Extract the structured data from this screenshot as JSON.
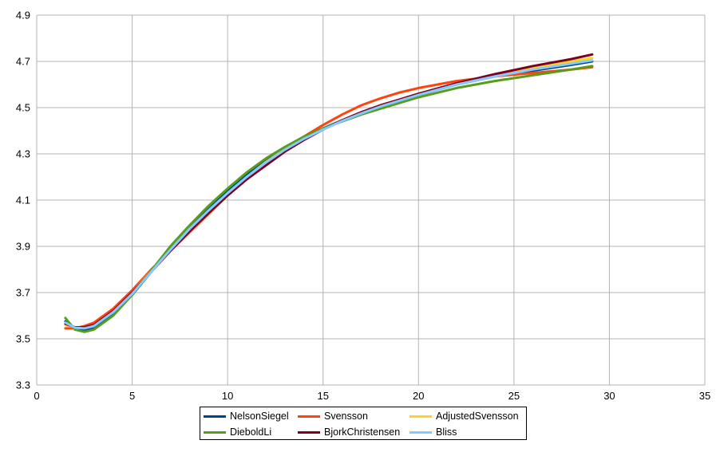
{
  "chart_data": {
    "type": "line",
    "title": "",
    "xlabel": "",
    "ylabel": "",
    "xlim": [
      0,
      35
    ],
    "ylim": [
      3.3,
      4.9
    ],
    "x_ticks": [
      "0",
      "5",
      "10",
      "15",
      "20",
      "25",
      "30",
      "35"
    ],
    "y_ticks": [
      "4.9",
      "4.7",
      "4.5",
      "4.3",
      "4.1",
      "3.9",
      "3.7",
      "3.5",
      "3.3"
    ],
    "grid": true,
    "legend_position": "bottom",
    "series": [
      {
        "name": "NelsonSiegel",
        "color": "#004586",
        "points": [
          [
            1.5,
            3.575
          ],
          [
            2.0,
            3.545
          ],
          [
            2.5,
            3.54
          ],
          [
            3.0,
            3.55
          ],
          [
            4.0,
            3.61
          ],
          [
            5.0,
            3.69
          ],
          [
            6.0,
            3.79
          ],
          [
            7.0,
            3.89
          ],
          [
            8.0,
            3.98
          ],
          [
            9.0,
            4.06
          ],
          [
            10.0,
            4.14
          ],
          [
            11.0,
            4.21
          ],
          [
            12.0,
            4.27
          ],
          [
            13.0,
            4.32
          ],
          [
            14.0,
            4.37
          ],
          [
            15.0,
            4.41
          ],
          [
            16.0,
            4.445
          ],
          [
            17.0,
            4.475
          ],
          [
            18.0,
            4.505
          ],
          [
            19.0,
            4.53
          ],
          [
            20.0,
            4.555
          ],
          [
            22.0,
            4.6
          ],
          [
            24.0,
            4.635
          ],
          [
            26.0,
            4.66
          ],
          [
            28.0,
            4.685
          ],
          [
            29.1,
            4.7
          ]
        ]
      },
      {
        "name": "Svensson",
        "color": "#ff420e",
        "points": [
          [
            1.5,
            3.545
          ],
          [
            2.0,
            3.545
          ],
          [
            2.5,
            3.555
          ],
          [
            3.0,
            3.57
          ],
          [
            4.0,
            3.63
          ],
          [
            5.0,
            3.71
          ],
          [
            6.0,
            3.8
          ],
          [
            7.0,
            3.88
          ],
          [
            8.0,
            3.96
          ],
          [
            9.0,
            4.04
          ],
          [
            10.0,
            4.12
          ],
          [
            11.0,
            4.19
          ],
          [
            12.0,
            4.255
          ],
          [
            13.0,
            4.32
          ],
          [
            14.0,
            4.375
          ],
          [
            15.0,
            4.425
          ],
          [
            16.0,
            4.47
          ],
          [
            17.0,
            4.51
          ],
          [
            18.0,
            4.54
          ],
          [
            19.0,
            4.565
          ],
          [
            20.0,
            4.585
          ],
          [
            22.0,
            4.615
          ],
          [
            24.0,
            4.635
          ],
          [
            26.0,
            4.65
          ],
          [
            28.0,
            4.665
          ],
          [
            29.1,
            4.675
          ]
        ]
      },
      {
        "name": "AdjustedSvensson",
        "color": "#ffd320",
        "points": [
          [
            1.5,
            3.56
          ],
          [
            2.0,
            3.55
          ],
          [
            2.5,
            3.55
          ],
          [
            3.0,
            3.56
          ],
          [
            4.0,
            3.62
          ],
          [
            5.0,
            3.7
          ],
          [
            6.0,
            3.795
          ],
          [
            7.0,
            3.885
          ],
          [
            8.0,
            3.975
          ],
          [
            9.0,
            4.055
          ],
          [
            10.0,
            4.13
          ],
          [
            11.0,
            4.2
          ],
          [
            12.0,
            4.265
          ],
          [
            13.0,
            4.32
          ],
          [
            14.0,
            4.365
          ],
          [
            15.0,
            4.405
          ],
          [
            16.0,
            4.445
          ],
          [
            17.0,
            4.48
          ],
          [
            18.0,
            4.51
          ],
          [
            19.0,
            4.535
          ],
          [
            20.0,
            4.56
          ],
          [
            22.0,
            4.605
          ],
          [
            24.0,
            4.64
          ],
          [
            26.0,
            4.67
          ],
          [
            28.0,
            4.7
          ],
          [
            29.1,
            4.715
          ]
        ]
      },
      {
        "name": "DieboldLi",
        "color": "#579d1c",
        "points": [
          [
            1.5,
            3.59
          ],
          [
            2.0,
            3.54
          ],
          [
            2.5,
            3.53
          ],
          [
            3.0,
            3.54
          ],
          [
            4.0,
            3.6
          ],
          [
            5.0,
            3.69
          ],
          [
            6.0,
            3.795
          ],
          [
            7.0,
            3.9
          ],
          [
            8.0,
            3.99
          ],
          [
            9.0,
            4.075
          ],
          [
            10.0,
            4.15
          ],
          [
            11.0,
            4.22
          ],
          [
            12.0,
            4.28
          ],
          [
            13.0,
            4.33
          ],
          [
            14.0,
            4.375
          ],
          [
            15.0,
            4.41
          ],
          [
            16.0,
            4.44
          ],
          [
            17.0,
            4.47
          ],
          [
            18.0,
            4.495
          ],
          [
            19.0,
            4.52
          ],
          [
            20.0,
            4.545
          ],
          [
            22.0,
            4.585
          ],
          [
            24.0,
            4.615
          ],
          [
            26.0,
            4.64
          ],
          [
            28.0,
            4.665
          ],
          [
            29.1,
            4.68
          ]
        ]
      },
      {
        "name": "BjorkChristensen",
        "color": "#7e0021",
        "points": [
          [
            1.5,
            3.565
          ],
          [
            2.0,
            3.55
          ],
          [
            2.5,
            3.55
          ],
          [
            3.0,
            3.56
          ],
          [
            4.0,
            3.62
          ],
          [
            5.0,
            3.7
          ],
          [
            6.0,
            3.79
          ],
          [
            7.0,
            3.88
          ],
          [
            8.0,
            3.965
          ],
          [
            9.0,
            4.045
          ],
          [
            10.0,
            4.12
          ],
          [
            11.0,
            4.19
          ],
          [
            12.0,
            4.25
          ],
          [
            13.0,
            4.31
          ],
          [
            14.0,
            4.36
          ],
          [
            15.0,
            4.405
          ],
          [
            16.0,
            4.445
          ],
          [
            17.0,
            4.48
          ],
          [
            18.0,
            4.51
          ],
          [
            19.0,
            4.535
          ],
          [
            20.0,
            4.56
          ],
          [
            22.0,
            4.605
          ],
          [
            24.0,
            4.645
          ],
          [
            26.0,
            4.68
          ],
          [
            28.0,
            4.71
          ],
          [
            29.1,
            4.73
          ]
        ]
      },
      {
        "name": "Bliss",
        "color": "#83caff",
        "points": [
          [
            1.5,
            3.57
          ],
          [
            2.0,
            3.548
          ],
          [
            2.5,
            3.545
          ],
          [
            3.0,
            3.555
          ],
          [
            4.0,
            3.615
          ],
          [
            5.0,
            3.695
          ],
          [
            6.0,
            3.79
          ],
          [
            7.0,
            3.885
          ],
          [
            8.0,
            3.975
          ],
          [
            9.0,
            4.055
          ],
          [
            10.0,
            4.13
          ],
          [
            11.0,
            4.2
          ],
          [
            12.0,
            4.262
          ],
          [
            13.0,
            4.318
          ],
          [
            14.0,
            4.365
          ],
          [
            15.0,
            4.405
          ],
          [
            16.0,
            4.442
          ],
          [
            17.0,
            4.475
          ],
          [
            18.0,
            4.505
          ],
          [
            19.0,
            4.53
          ],
          [
            20.0,
            4.555
          ],
          [
            22.0,
            4.6
          ],
          [
            24.0,
            4.635
          ],
          [
            26.0,
            4.665
          ],
          [
            28.0,
            4.69
          ],
          [
            29.1,
            4.705
          ]
        ]
      }
    ]
  }
}
